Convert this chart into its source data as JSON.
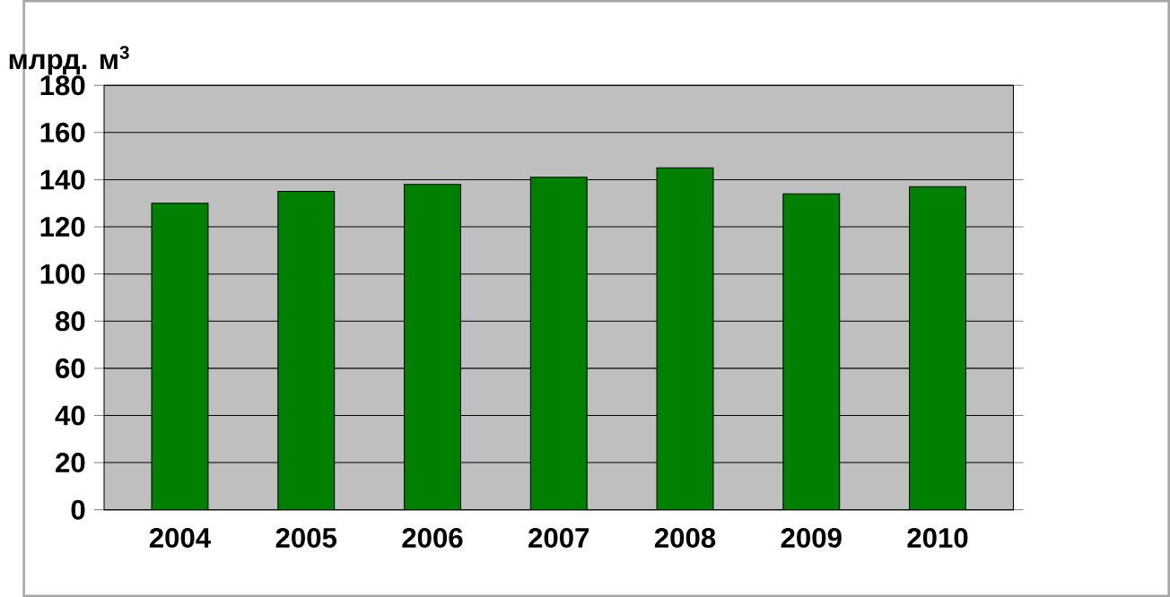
{
  "chart_data": {
    "type": "bar",
    "ylabel": "млрд. м$^{3}$",
    "categories": [
      "2004",
      "2005",
      "2006",
      "2007",
      "2008",
      "2009",
      "2010"
    ],
    "values": [
      130,
      135,
      138,
      141,
      145,
      134,
      137
    ],
    "color": "#008000",
    "ylim": [
      0,
      180
    ],
    "yticks": [
      0,
      20,
      40,
      60,
      80,
      100,
      120,
      140,
      160,
      180
    ],
    "grid": "y"
  }
}
